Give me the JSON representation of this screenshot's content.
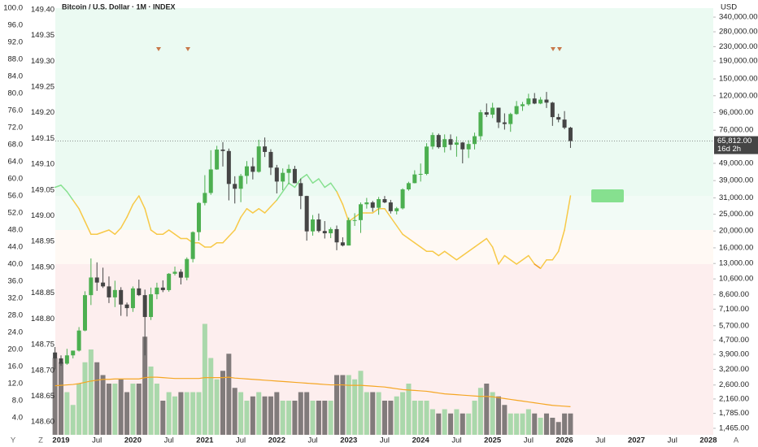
{
  "chart_data": {
    "type": "candlestick",
    "title": "Bitcoin / U.S. Dollar · 1M · INDEX",
    "currency": "USD",
    "log_scale": true,
    "grid": false,
    "up_color": "#4caf50",
    "down_color": "#454545",
    "volume_up_color": "#a5d6a7",
    "volume_down_color": "#7a7474",
    "volume_ma_color": "#f5a623",
    "last_price_label": "65,812.00",
    "countdown": "16d 2h",
    "time_labels": [
      "2019",
      "Jul",
      "2020",
      "Jul",
      "2021",
      "Jul",
      "2022",
      "Jul",
      "2023",
      "Jul",
      "2024",
      "Jul",
      "2025",
      "Jul",
      "2026",
      "Jul",
      "2027",
      "Jul",
      "2028"
    ],
    "corner_labels": [
      "Y",
      "Z",
      "A"
    ],
    "ylim": [
      1344,
      383000
    ],
    "yticks": [
      {
        "value": 340000,
        "label": "340,000.00"
      },
      {
        "value": 280000,
        "label": "280,000.00"
      },
      {
        "value": 230000,
        "label": "230,000.00"
      },
      {
        "value": 190000,
        "label": "190,000.00"
      },
      {
        "value": 150000,
        "label": "150,000.00"
      },
      {
        "value": 120000,
        "label": "120,000.00"
      },
      {
        "value": 96000,
        "label": "96,000.00"
      },
      {
        "value": 76000,
        "label": "76,000.00"
      },
      {
        "value": 49000,
        "label": "49,000.00"
      },
      {
        "value": 39000,
        "label": "39,000.00"
      },
      {
        "value": 31000,
        "label": "31,000.00"
      },
      {
        "value": 25000,
        "label": "25,000.00"
      },
      {
        "value": 20000,
        "label": "20,000.00"
      },
      {
        "value": 16000,
        "label": "16,000.00"
      },
      {
        "value": 13000,
        "label": "13,000.00"
      },
      {
        "value": 10600,
        "label": "10,600.00"
      },
      {
        "value": 8600,
        "label": "8,600.00"
      },
      {
        "value": 7100,
        "label": "7,100.00"
      },
      {
        "value": 5700,
        "label": "5,700.00"
      },
      {
        "value": 4700,
        "label": "4,700.00"
      },
      {
        "value": 3900,
        "label": "3,900.00"
      },
      {
        "value": 3200,
        "label": "3,200.00"
      },
      {
        "value": 2600,
        "label": "2,600.00"
      },
      {
        "value": 2160,
        "label": "2,160.00"
      },
      {
        "value": 1785,
        "label": "1,785.00"
      },
      {
        "value": 1465,
        "label": "1,465.00"
      }
    ],
    "y2lim": [
      0,
      100
    ],
    "y2ticks": [
      {
        "value": 100,
        "label": "100.0"
      },
      {
        "value": 96,
        "label": "96.0"
      },
      {
        "value": 92,
        "label": "92.0"
      },
      {
        "value": 88,
        "label": "88.0"
      },
      {
        "value": 84,
        "label": "84.0"
      },
      {
        "value": 80,
        "label": "80.0"
      },
      {
        "value": 76,
        "label": "76.0"
      },
      {
        "value": 72,
        "label": "72.0"
      },
      {
        "value": 68,
        "label": "68.0"
      },
      {
        "value": 64,
        "label": "64.0"
      },
      {
        "value": 60,
        "label": "60.0"
      },
      {
        "value": 56,
        "label": "56.0"
      },
      {
        "value": 52,
        "label": "52.0"
      },
      {
        "value": 48,
        "label": "48.0"
      },
      {
        "value": 44,
        "label": "44.0"
      },
      {
        "value": 40,
        "label": "40.0"
      },
      {
        "value": 36,
        "label": "36.0"
      },
      {
        "value": 32,
        "label": "32.0"
      },
      {
        "value": 28,
        "label": "28.0"
      },
      {
        "value": 24,
        "label": "24.0"
      },
      {
        "value": 20,
        "label": "20.0"
      },
      {
        "value": 16,
        "label": "16.0"
      },
      {
        "value": 12,
        "label": "12.0"
      },
      {
        "value": 8,
        "label": "8.0"
      },
      {
        "value": 4,
        "label": "4.0"
      }
    ],
    "y3lim": [
      148.575,
      149.403
    ],
    "y3ticks": [
      {
        "value": 149.4,
        "label": "149.40"
      },
      {
        "value": 149.35,
        "label": "149.35"
      },
      {
        "value": 149.3,
        "label": "149.30"
      },
      {
        "value": 149.25,
        "label": "149.25"
      },
      {
        "value": 149.2,
        "label": "149.20"
      },
      {
        "value": 149.15,
        "label": "149.15"
      },
      {
        "value": 149.1,
        "label": "149.10"
      },
      {
        "value": 149.05,
        "label": "149.05"
      },
      {
        "value": 149.0,
        "label": "149.00"
      },
      {
        "value": 148.95,
        "label": "148.95"
      },
      {
        "value": 148.9,
        "label": "148.90"
      },
      {
        "value": 148.85,
        "label": "148.85"
      },
      {
        "value": 148.8,
        "label": "148.80"
      },
      {
        "value": 148.75,
        "label": "148.75"
      },
      {
        "value": 148.7,
        "label": "148.70"
      },
      {
        "value": 148.65,
        "label": "148.65"
      },
      {
        "value": 148.6,
        "label": "148.60"
      }
    ],
    "bands": [
      {
        "from": 56,
        "to": 100,
        "color": "#ebfaf2",
        "line_color": "#86e08f"
      },
      {
        "from": 48,
        "to": 56,
        "color": "#f2fbf6",
        "line_color": "#f7c948"
      },
      {
        "from": 40,
        "to": 48,
        "color": "#fff9f4",
        "line_color": "#f7c948"
      },
      {
        "from": 0,
        "to": 40,
        "color": "#fdeeee",
        "line_color": "#f0a020"
      }
    ],
    "ohlc": [
      [
        4000,
        4300,
        3200,
        3700
      ],
      [
        3700,
        3850,
        3350,
        3450
      ],
      [
        3450,
        4200,
        3400,
        3850
      ],
      [
        3850,
        4100,
        3700,
        4100
      ],
      [
        4100,
        5600,
        4050,
        5350
      ],
      [
        5350,
        9000,
        5300,
        8550
      ],
      [
        8550,
        13900,
        7500,
        10800
      ],
      [
        10800,
        13200,
        9050,
        10100
      ],
      [
        10100,
        12300,
        9400,
        9600
      ],
      [
        9600,
        10950,
        7700,
        8300
      ],
      [
        8300,
        10350,
        7300,
        9150
      ],
      [
        9150,
        9500,
        6500,
        7550
      ],
      [
        7550,
        7750,
        6450,
        7200
      ],
      [
        7200,
        9600,
        6850,
        9350
      ],
      [
        9350,
        10500,
        8450,
        8550
      ],
      [
        8550,
        9200,
        3850,
        6400
      ],
      [
        6400,
        9450,
        6150,
        8650
      ],
      [
        8650,
        10080,
        8100,
        9450
      ],
      [
        9450,
        10400,
        8900,
        9140
      ],
      [
        9140,
        11450,
        8950,
        11350
      ],
      [
        11350,
        12480,
        11100,
        11650
      ],
      [
        11650,
        12050,
        9850,
        10780
      ],
      [
        10780,
        14100,
        10400,
        13800
      ],
      [
        13800,
        19900,
        13200,
        19700
      ],
      [
        19700,
        29300,
        17600,
        29000
      ],
      [
        29000,
        41900,
        28100,
        33100
      ],
      [
        33100,
        58300,
        32300,
        45200
      ],
      [
        45200,
        61800,
        45000,
        58800
      ],
      [
        58800,
        64900,
        47000,
        57700
      ],
      [
        57700,
        59600,
        30000,
        37300
      ],
      [
        37300,
        41300,
        28800,
        35000
      ],
      [
        35000,
        42600,
        29300,
        41500
      ],
      [
        41500,
        50500,
        37300,
        47100
      ],
      [
        47100,
        52900,
        39600,
        43800
      ],
      [
        43800,
        67000,
        43300,
        61300
      ],
      [
        61300,
        69000,
        53300,
        57000
      ],
      [
        57000,
        59100,
        42000,
        46300
      ],
      [
        46300,
        48000,
        32900,
        38500
      ],
      [
        38500,
        45800,
        34300,
        43200
      ],
      [
        43200,
        48200,
        37200,
        45500
      ],
      [
        45500,
        47400,
        37600,
        37700
      ],
      [
        37700,
        40000,
        26700,
        31800
      ],
      [
        31800,
        31900,
        17600,
        19900
      ],
      [
        19900,
        24700,
        18800,
        23300
      ],
      [
        23300,
        25200,
        19600,
        20000
      ],
      [
        20000,
        22800,
        18100,
        19400
      ],
      [
        19400,
        21000,
        18200,
        20500
      ],
      [
        20500,
        21500,
        15500,
        17200
      ],
      [
        17200,
        18400,
        16300,
        16500
      ],
      [
        16500,
        23900,
        16500,
        23100
      ],
      [
        23100,
        25300,
        21400,
        23100
      ],
      [
        23100,
        29200,
        19500,
        28500
      ],
      [
        28500,
        31000,
        26900,
        29200
      ],
      [
        29200,
        29800,
        25800,
        27200
      ],
      [
        27200,
        31400,
        24800,
        30500
      ],
      [
        30500,
        31800,
        28900,
        29200
      ],
      [
        29200,
        30200,
        25200,
        26000
      ],
      [
        26000,
        27500,
        24900,
        27000
      ],
      [
        27000,
        35200,
        26600,
        34700
      ],
      [
        34700,
        38400,
        34100,
        37700
      ],
      [
        37700,
        44700,
        37600,
        42300
      ],
      [
        42300,
        48900,
        38500,
        42600
      ],
      [
        42600,
        64000,
        41900,
        61200
      ],
      [
        61200,
        73800,
        59000,
        71300
      ],
      [
        71300,
        72700,
        59600,
        60700
      ],
      [
        60700,
        71900,
        56600,
        67500
      ],
      [
        67500,
        71900,
        58400,
        62700
      ],
      [
        62700,
        70000,
        53500,
        64600
      ],
      [
        64600,
        65000,
        49000,
        59000
      ],
      [
        59000,
        66500,
        52600,
        63300
      ],
      [
        63300,
        73600,
        58900,
        70200
      ],
      [
        70200,
        99600,
        66800,
        96400
      ],
      [
        96400,
        108300,
        90500,
        93400
      ],
      [
        93400,
        109300,
        89200,
        102400
      ],
      [
        102400,
        102500,
        78200,
        84300
      ],
      [
        84300,
        95000,
        76600,
        82500
      ],
      [
        82500,
        95800,
        74400,
        94200
      ],
      [
        94200,
        111900,
        93300,
        104600
      ],
      [
        104600,
        110500,
        98200,
        107100
      ],
      [
        107100,
        123200,
        105100,
        115700
      ],
      [
        115700,
        124400,
        107300,
        108200
      ],
      [
        108200,
        117900,
        107300,
        114000
      ],
      [
        114000,
        126200,
        102000,
        109500
      ],
      [
        109500,
        110600,
        80500,
        90400
      ],
      [
        90400,
        94600,
        84400,
        87500
      ],
      [
        87500,
        97900,
        77000,
        78600
      ],
      [
        78600,
        79500,
        60100,
        65812
      ]
    ],
    "volume": [
      18,
      17,
      10,
      7,
      12,
      17,
      20,
      17,
      14,
      12,
      12,
      13,
      10,
      12,
      12,
      23,
      16,
      12,
      8,
      10,
      9,
      10,
      10,
      10,
      10,
      26,
      18,
      13,
      15,
      19,
      11,
      10,
      8,
      9,
      10,
      9,
      9,
      10,
      8,
      8,
      8,
      10,
      10,
      8,
      8,
      8,
      8,
      14,
      14,
      14,
      13,
      15,
      10,
      10,
      10,
      8,
      8,
      9,
      10,
      12,
      8,
      8,
      8,
      6,
      5,
      6,
      5,
      6,
      5,
      5,
      8,
      11,
      12,
      10,
      9,
      7,
      5,
      5,
      5,
      6,
      5,
      4,
      5,
      4,
      3,
      5,
      5
    ],
    "volume_ma": [
      11.5,
      11.6,
      11.7,
      11.8,
      12,
      12.3,
      12.6,
      12.8,
      13,
      13,
      13.1,
      13.1,
      13.1,
      13.1,
      13.1,
      13.4,
      13.5,
      13.5,
      13.4,
      13.3,
      13.2,
      13.2,
      13.2,
      13.2,
      13.2,
      13.4,
      13.4,
      13.4,
      13.4,
      13.5,
      13.3,
      13.2,
      13.1,
      13,
      12.9,
      12.8,
      12.7,
      12.6,
      12.5,
      12.4,
      12.3,
      12.2,
      12.1,
      12,
      11.9,
      11.8,
      11.7,
      11.7,
      11.7,
      11.6,
      11.6,
      11.6,
      11.5,
      11.4,
      11.3,
      11.2,
      11,
      10.8,
      10.6,
      10.5,
      10.4,
      10.3,
      10.2,
      10,
      9.8,
      9.6,
      9.5,
      9.4,
      9.3,
      9.2,
      9.1,
      9,
      9,
      8.9,
      8.7,
      8.5,
      8.3,
      8.1,
      7.9,
      7.7,
      7.5,
      7.3,
      7.1,
      6.9,
      6.8,
      6.7,
      6.6
    ],
    "oscillator": [
      58,
      58.5,
      57,
      55,
      53,
      50,
      47,
      47,
      47.5,
      48,
      47,
      48.5,
      51,
      54,
      56,
      53,
      48,
      47,
      47,
      48,
      47,
      46,
      46,
      45,
      45,
      44,
      44,
      45,
      45,
      46.5,
      48,
      51,
      53,
      52,
      53,
      52,
      53.5,
      55,
      57,
      59,
      58,
      60,
      61,
      59,
      60,
      58,
      59,
      57,
      54,
      50,
      51,
      52,
      52,
      52,
      53,
      53,
      51,
      49,
      47,
      46,
      45,
      44,
      43,
      43,
      42,
      43,
      42,
      41,
      42,
      43,
      44,
      45,
      46,
      44,
      40,
      42,
      41,
      40,
      41,
      42,
      40,
      39,
      41,
      41,
      43,
      48,
      56
    ]
  }
}
